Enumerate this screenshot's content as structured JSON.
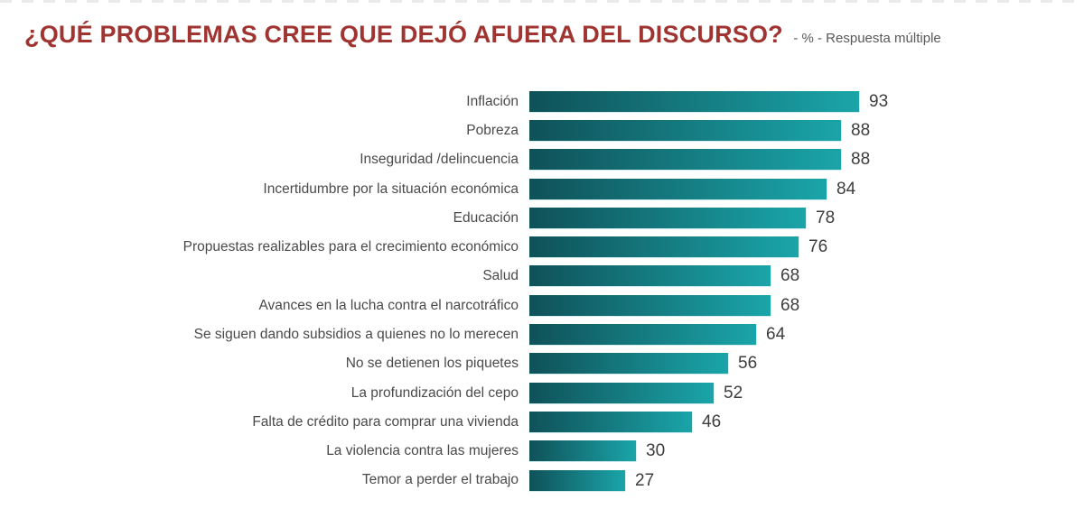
{
  "chart_data": {
    "type": "bar",
    "orientation": "horizontal",
    "title": "¿QUÉ PROBLEMAS CREE QUE DEJÓ AFUERA DEL DISCURSO?",
    "subtitle": "- % - Respuesta múltiple",
    "categories": [
      "Inflación",
      "Pobreza",
      "Inseguridad /delincuencia",
      "Incertidumbre por la situación económica",
      "Educación",
      "Propuestas realizables para el crecimiento económico",
      "Salud",
      "Avances en la lucha contra el narcotráfico",
      "Se siguen dando subsidios a quienes no lo merecen",
      "No se detienen los piquetes",
      "La profundización del cepo",
      "Falta de crédito para comprar una vivienda",
      "La violencia contra las mujeres",
      "Temor a perder el trabajo"
    ],
    "values": [
      93,
      88,
      88,
      84,
      78,
      76,
      68,
      68,
      64,
      56,
      52,
      46,
      30,
      27
    ],
    "xlim": [
      0,
      100
    ],
    "value_labels": true,
    "grid": false,
    "legend": false,
    "colors": {
      "bar_gradient_start": "#0F5158",
      "bar_gradient_end": "#1AA5A9",
      "title": "#9F3431",
      "subtitle": "#595959",
      "category_label": "#4A4A4A",
      "value_label": "#3D3D3D"
    }
  }
}
